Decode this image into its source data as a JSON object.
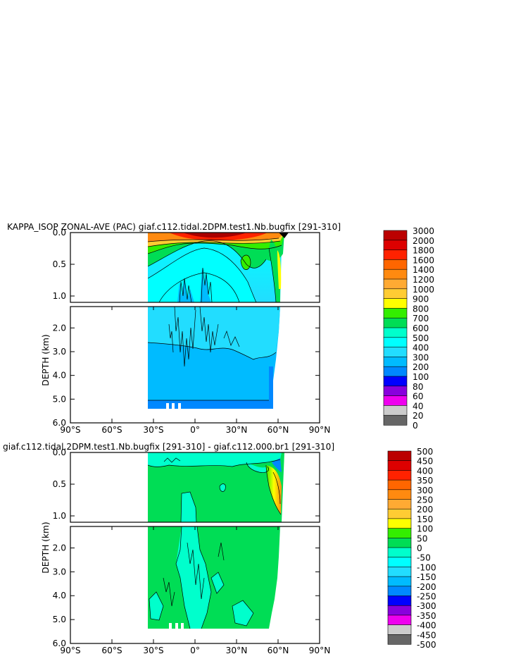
{
  "chart_data": [
    {
      "type": "heatmap",
      "title": "KAPPA_ISOP ZONAL-AVE (PAC) giaf.c112.tidal.2DPM.test1.Nb.bugfix [291-310]",
      "ylabel": "DEPTH (km)",
      "xlabel": "",
      "x_ticks": [
        "90°S",
        "60°S",
        "30°S",
        "0°",
        "30°N",
        "60°N",
        "90°N"
      ],
      "x_tick_values": [
        -90,
        -60,
        -30,
        0,
        30,
        60,
        90
      ],
      "xlim": [
        -90,
        90
      ],
      "y_ticks_upper": [
        "0.0",
        "0.5",
        "1.0"
      ],
      "y_tick_values_upper": [
        0.0,
        0.5,
        1.0
      ],
      "ylim_upper": [
        0.0,
        1.1
      ],
      "y_ticks_lower": [
        "2.0",
        "3.0",
        "4.0",
        "5.0",
        "6.0"
      ],
      "y_tick_values_lower": [
        2.0,
        3.0,
        4.0,
        5.0,
        6.0
      ],
      "ylim_lower": [
        1.1,
        6.0
      ],
      "data_extent_lat": [
        -35,
        65
      ],
      "colorbar_labels": [
        "3000",
        "2000",
        "1800",
        "1600",
        "1400",
        "1200",
        "1000",
        "900",
        "800",
        "700",
        "600",
        "500",
        "400",
        "300",
        "200",
        "100",
        "80",
        "60",
        "40",
        "20",
        "0"
      ],
      "colorbar_colors": [
        "#bb0000",
        "#dd0000",
        "#ff2200",
        "#ff6600",
        "#ff8a10",
        "#ffaa33",
        "#ffcc33",
        "#ffff00",
        "#33ee00",
        "#00dd55",
        "#00ffcc",
        "#00ffff",
        "#22ddff",
        "#00bbff",
        "#0088ff",
        "#0000ff",
        "#8800dd",
        "#ee00ee",
        "#cccccc",
        "#666666"
      ]
    },
    {
      "type": "heatmap",
      "title": "giaf.c112.tidal.2DPM.test1.Nb.bugfix [291-310] - giaf.c112.000.br1 [291-310]",
      "ylabel": "DEPTH (km)",
      "xlabel": "",
      "x_ticks": [
        "90°S",
        "60°S",
        "30°S",
        "0°",
        "30°N",
        "60°N",
        "90°N"
      ],
      "x_tick_values": [
        -90,
        -60,
        -30,
        0,
        30,
        60,
        90
      ],
      "xlim": [
        -90,
        90
      ],
      "y_ticks_upper": [
        "0.0",
        "0.5",
        "1.0"
      ],
      "y_tick_values_upper": [
        0.0,
        0.5,
        1.0
      ],
      "ylim_upper": [
        0.0,
        1.1
      ],
      "y_ticks_lower": [
        "2.0",
        "3.0",
        "4.0",
        "5.0",
        "6.0"
      ],
      "y_tick_values_lower": [
        2.0,
        3.0,
        4.0,
        5.0,
        6.0
      ],
      "ylim_lower": [
        1.1,
        6.0
      ],
      "data_extent_lat": [
        -35,
        65
      ],
      "colorbar_labels": [
        "500",
        "450",
        "400",
        "350",
        "300",
        "250",
        "200",
        "150",
        "100",
        "50",
        "0",
        "-50",
        "-100",
        "-150",
        "-200",
        "-250",
        "-300",
        "-350",
        "-400",
        "-450",
        "-500"
      ],
      "colorbar_colors": [
        "#bb0000",
        "#dd0000",
        "#ff2200",
        "#ff6600",
        "#ff8a10",
        "#ffaa33",
        "#ffcc33",
        "#ffff00",
        "#33ee00",
        "#00dd55",
        "#00ffcc",
        "#00ffff",
        "#22ddff",
        "#00bbff",
        "#0088ff",
        "#0000ff",
        "#8800dd",
        "#ee00ee",
        "#cccccc",
        "#666666"
      ]
    }
  ]
}
